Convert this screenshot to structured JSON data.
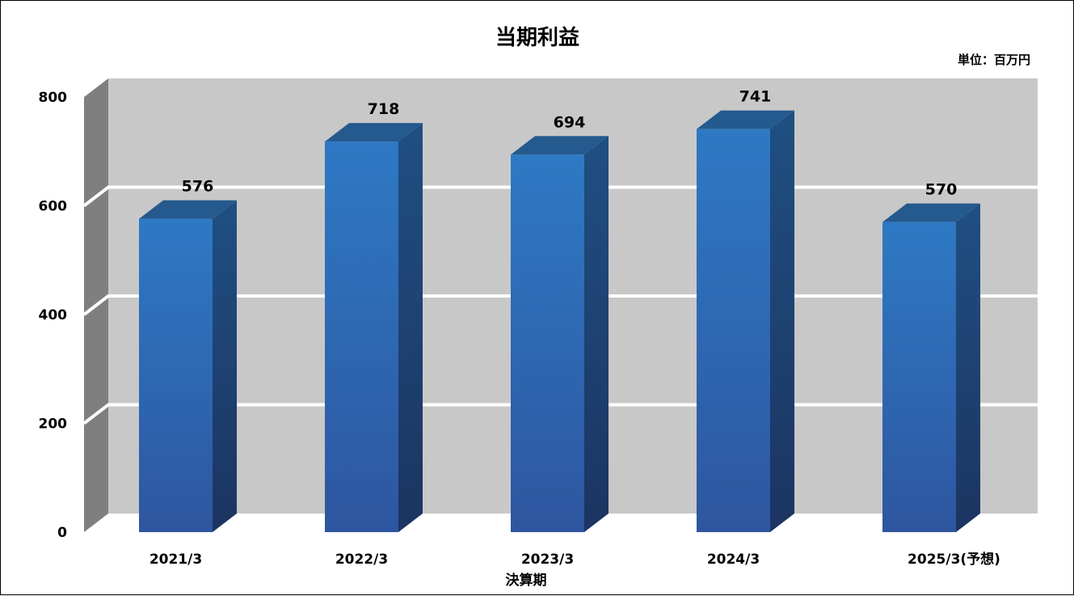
{
  "chart_data": {
    "type": "bar",
    "title": "当期利益",
    "unit": "単位：百万円",
    "xlabel": "決算期",
    "ylabel": "",
    "categories": [
      "2021/3",
      "2022/3",
      "2023/3",
      "2024/3",
      "2025/3(予想)"
    ],
    "values": [
      576,
      718,
      694,
      741,
      570
    ],
    "ylim": [
      0,
      800
    ],
    "yticks": [
      "0",
      "200",
      "400",
      "600",
      "800"
    ],
    "grid": true,
    "three_d": true,
    "colors": {
      "bar_front_top": "#2e79c4",
      "bar_front_bottom": "#2e56a0",
      "bar_side_top": "#1f4f82",
      "bar_side_bottom": "#1c3461",
      "bar_top": "#245a8e",
      "wall": "#c8c8c8",
      "side_wall": "#7f7f7f",
      "gridline": "#ffffff"
    }
  }
}
